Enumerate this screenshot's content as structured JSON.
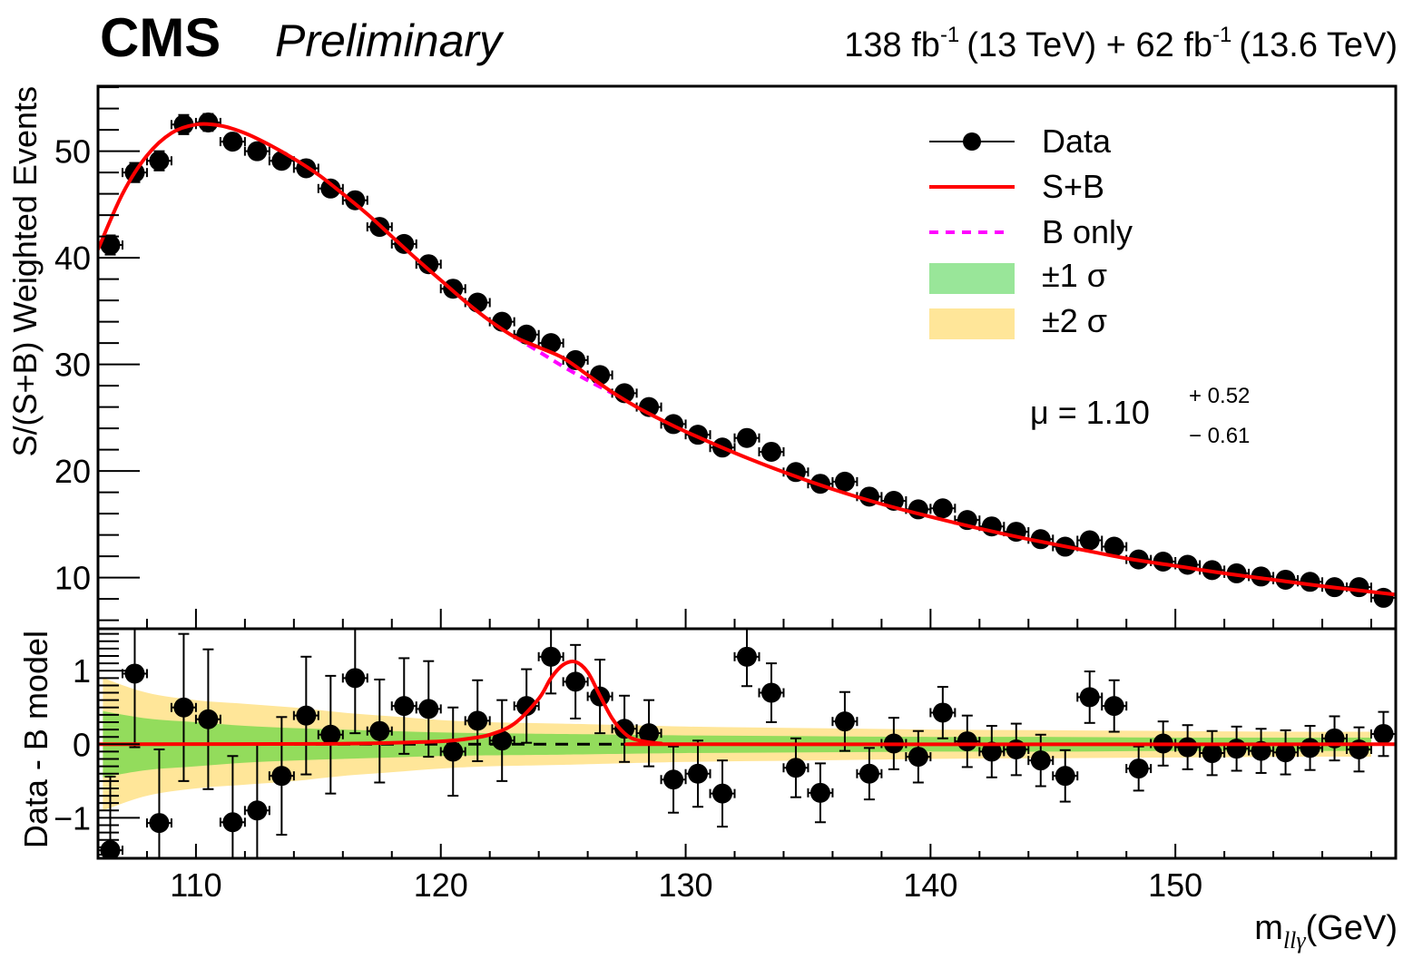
{
  "header": {
    "experiment": "CMS",
    "status": "Preliminary",
    "lumi_1": "138 fb",
    "lumi_1_exp": "-1",
    "energy_1": "(13 TeV) + 62 fb",
    "lumi_2_exp": "-1",
    "energy_2": "(13.6 TeV)"
  },
  "colors": {
    "data": "#000000",
    "sb": "#ff0000",
    "bonly": "#ff00ff",
    "band1": "#99e699",
    "band2": "#ffe699",
    "band1_lower": "#93dc5c",
    "band2_lower": "#ffe699"
  },
  "legend": {
    "items": [
      {
        "label": "Data",
        "kind": "marker"
      },
      {
        "label": "S+B",
        "kind": "line"
      },
      {
        "label": "B only",
        "kind": "dashed"
      },
      {
        "label": "±1 σ",
        "kind": "box1"
      },
      {
        "label": "±2 σ",
        "kind": "box2"
      }
    ],
    "mu_text": "μ = 1.10",
    "mu_up": "+ 0.52",
    "mu_down": "− 0.61"
  },
  "chart_data": [
    {
      "type": "scatter",
      "panel": "upper",
      "ylabel": "S/(S+B) Weighted Events",
      "xlim": [
        106,
        159
      ],
      "ylim": [
        5.2,
        56.1
      ],
      "yticks": [
        10,
        20,
        30,
        40,
        50
      ],
      "x": [
        106.5,
        107.5,
        108.5,
        109.5,
        110.5,
        111.5,
        112.5,
        113.5,
        114.5,
        115.5,
        116.5,
        117.5,
        118.5,
        119.5,
        120.5,
        121.5,
        122.5,
        123.5,
        124.5,
        125.5,
        126.5,
        127.5,
        128.5,
        129.5,
        130.5,
        131.5,
        132.5,
        133.5,
        134.5,
        135.5,
        136.5,
        137.5,
        138.5,
        139.5,
        140.5,
        141.5,
        142.5,
        143.5,
        144.5,
        145.5,
        146.5,
        147.5,
        148.5,
        149.5,
        150.5,
        151.5,
        152.5,
        153.5,
        154.5,
        155.5,
        156.5,
        157.5,
        158.5
      ],
      "series": [
        {
          "name": "Data",
          "values": [
            41.2,
            48.0,
            49.1,
            52.5,
            52.7,
            50.9,
            50.0,
            49.1,
            48.4,
            46.5,
            45.4,
            42.9,
            41.3,
            39.4,
            37.1,
            35.8,
            34.0,
            32.8,
            32.0,
            30.4,
            29.0,
            27.3,
            26.0,
            24.4,
            23.4,
            22.2,
            23.1,
            21.8,
            19.9,
            18.8,
            19.0,
            17.6,
            17.2,
            16.4,
            16.5,
            15.4,
            14.8,
            14.3,
            13.6,
            12.9,
            13.5,
            12.9,
            11.7,
            11.5,
            11.2,
            10.7,
            10.4,
            10.1,
            9.8,
            9.6,
            9.1,
            9.1,
            8.1
          ],
          "yerr": [
            0.9,
            0.9,
            0.9,
            0.9,
            0.8,
            0.7,
            0.7,
            0.6,
            0.6,
            0.6,
            0.6,
            0.5,
            0.5,
            0.5,
            0.5,
            0.5,
            0.4,
            0.4,
            0.4,
            0.4,
            0.4,
            0.4,
            0.4,
            0.4,
            0.3,
            0.3,
            0.3,
            0.3,
            0.3,
            0.3,
            0.3,
            0.3,
            0.3,
            0.3,
            0.3,
            0.3,
            0.3,
            0.3,
            0.3,
            0.3,
            0.3,
            0.3,
            0.3,
            0.3,
            0.3,
            0.3,
            0.3,
            0.3,
            0.3,
            0.3,
            0.3,
            0.3,
            0.3
          ],
          "xerr": 0.5
        },
        {
          "name": "S+B",
          "x": [
            106,
            107,
            108,
            109,
            110,
            111,
            112,
            113,
            114,
            115,
            116,
            117,
            118,
            119,
            120,
            121,
            122,
            123,
            124,
            125,
            126,
            127,
            128,
            129,
            130,
            132,
            134,
            136,
            138,
            140,
            142,
            144,
            146,
            148,
            150,
            152,
            154,
            156,
            159
          ],
          "values": [
            40.8,
            46.0,
            49.6,
            51.7,
            52.5,
            52.4,
            51.7,
            50.6,
            49.3,
            47.8,
            46.0,
            44.1,
            42.0,
            39.9,
            37.9,
            35.9,
            34.1,
            32.6,
            31.6,
            30.6,
            29.0,
            27.4,
            26.0,
            24.8,
            23.7,
            21.7,
            19.9,
            18.3,
            16.9,
            15.7,
            14.6,
            13.6,
            12.7,
            11.8,
            11.1,
            10.4,
            9.8,
            9.2,
            8.4
          ]
        },
        {
          "name": "B only",
          "x": [
            123,
            124,
            125,
            126,
            127
          ],
          "values": [
            32.6,
            31.2,
            29.8,
            28.5,
            27.3
          ]
        }
      ]
    },
    {
      "type": "scatter",
      "panel": "lower",
      "ylabel": "Data - B model",
      "xlabel": "m_llγ(GeV)",
      "xlim": [
        106,
        159
      ],
      "ylim": [
        -1.55,
        1.57
      ],
      "yticks": [
        -1,
        0,
        1
      ],
      "xticks": [
        110,
        120,
        130,
        140,
        150
      ],
      "x": [
        106.5,
        107.5,
        108.5,
        109.5,
        110.5,
        111.5,
        112.5,
        113.5,
        114.5,
        115.5,
        116.5,
        117.5,
        118.5,
        119.5,
        120.5,
        121.5,
        122.5,
        123.5,
        124.5,
        125.5,
        126.5,
        127.5,
        128.5,
        129.5,
        130.5,
        131.5,
        132.5,
        133.5,
        134.5,
        135.5,
        136.5,
        137.5,
        138.5,
        139.5,
        140.5,
        141.5,
        142.5,
        143.5,
        144.5,
        145.5,
        146.5,
        147.5,
        148.5,
        149.5,
        150.5,
        151.5,
        152.5,
        153.5,
        154.5,
        155.5,
        156.5,
        157.5,
        158.5
      ],
      "series": [
        {
          "name": "Data",
          "values": [
            -1.44,
            0.96,
            -1.07,
            0.5,
            0.34,
            -1.06,
            -0.9,
            -0.43,
            0.39,
            0.13,
            0.9,
            0.18,
            0.52,
            0.48,
            -0.1,
            0.32,
            0.05,
            0.52,
            1.19,
            0.85,
            0.65,
            0.21,
            0.15,
            -0.48,
            -0.4,
            -0.67,
            1.19,
            0.7,
            -0.32,
            -0.66,
            0.31,
            -0.4,
            0.01,
            -0.17,
            0.43,
            0.04,
            -0.1,
            -0.07,
            -0.22,
            -0.43,
            0.64,
            0.52,
            -0.33,
            0.01,
            -0.04,
            -0.12,
            -0.06,
            -0.09,
            -0.11,
            -0.05,
            0.08,
            -0.07,
            0.14
          ],
          "yerr": [
            1.0,
            1.0,
            1.0,
            1.0,
            0.95,
            0.9,
            0.9,
            0.8,
            0.8,
            0.8,
            0.75,
            0.7,
            0.65,
            0.65,
            0.6,
            0.55,
            0.55,
            0.5,
            0.5,
            0.5,
            0.5,
            0.45,
            0.45,
            0.45,
            0.45,
            0.45,
            0.4,
            0.4,
            0.4,
            0.4,
            0.4,
            0.35,
            0.35,
            0.35,
            0.35,
            0.35,
            0.35,
            0.35,
            0.35,
            0.35,
            0.35,
            0.35,
            0.3,
            0.3,
            0.3,
            0.3,
            0.3,
            0.3,
            0.3,
            0.3,
            0.3,
            0.3,
            0.3
          ],
          "xerr": 0.5
        },
        {
          "name": "S+B - B",
          "x": [
            106,
            115,
            118,
            120,
            121,
            122,
            123,
            124,
            124.5,
            125,
            125.5,
            126,
            126.5,
            127,
            127.5,
            128,
            129,
            130,
            159
          ],
          "values": [
            0,
            0.005,
            0.02,
            0.04,
            0.07,
            0.13,
            0.28,
            0.62,
            0.9,
            1.08,
            1.12,
            0.98,
            0.66,
            0.35,
            0.15,
            0.06,
            0.01,
            0,
            0
          ]
        },
        {
          "name": "B only",
          "x": [
            106,
            159
          ],
          "values": [
            0,
            0
          ]
        },
        {
          "name": "±1 σ",
          "x": [
            106.2,
            108,
            110,
            112,
            114,
            116,
            118,
            120,
            122,
            125,
            130,
            135,
            140,
            145,
            150,
            155,
            158
          ],
          "half_width": [
            0.45,
            0.35,
            0.3,
            0.25,
            0.22,
            0.2,
            0.18,
            0.16,
            0.15,
            0.14,
            0.12,
            0.11,
            0.1,
            0.1,
            0.09,
            0.09,
            0.09
          ]
        },
        {
          "name": "±2 σ",
          "x": [
            106.2,
            108,
            110,
            112,
            114,
            116,
            118,
            120,
            122,
            125,
            130,
            135,
            140,
            145,
            150,
            155,
            158
          ],
          "half_width": [
            0.9,
            0.7,
            0.6,
            0.55,
            0.5,
            0.43,
            0.38,
            0.33,
            0.3,
            0.28,
            0.24,
            0.22,
            0.2,
            0.19,
            0.18,
            0.17,
            0.17
          ]
        }
      ]
    }
  ]
}
